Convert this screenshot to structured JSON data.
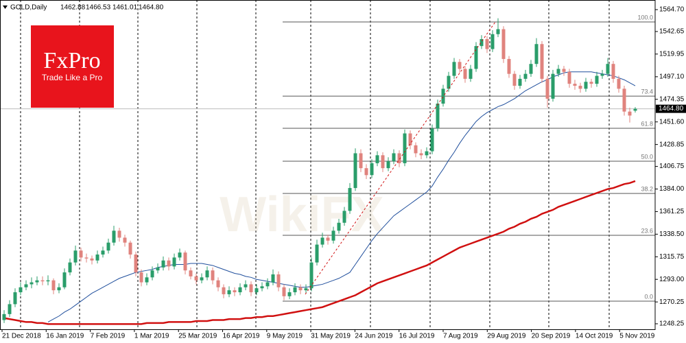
{
  "header": {
    "symbol": "GOLD,Daily",
    "ohlc": [
      "1462.88",
      "1466.53",
      "1461.01",
      "1464.80"
    ]
  },
  "logo": {
    "title": "FxPro",
    "tagline": "Trade Like a Pro"
  },
  "watermark": "WikiFX",
  "chart_data": {
    "type": "candlestick",
    "up_color": "#2a9d6a",
    "down_color": "#e0837e",
    "candles": [
      [
        1252,
        1262,
        1249,
        1258
      ],
      [
        1258,
        1272,
        1255,
        1268
      ],
      [
        1268,
        1284,
        1265,
        1280
      ],
      [
        1280,
        1290,
        1277,
        1285
      ],
      [
        1285,
        1292,
        1282,
        1288
      ],
      [
        1288,
        1295,
        1284,
        1290
      ],
      [
        1290,
        1296,
        1287,
        1292
      ],
      [
        1292,
        1296,
        1287,
        1291
      ],
      [
        1291,
        1297,
        1287,
        1292
      ],
      [
        1292,
        1294,
        1278,
        1282
      ],
      [
        1282,
        1289,
        1279,
        1285
      ],
      [
        1285,
        1304,
        1283,
        1300
      ],
      [
        1300,
        1314,
        1297,
        1310
      ],
      [
        1310,
        1327,
        1307,
        1322
      ],
      [
        1322,
        1325,
        1311,
        1315
      ],
      [
        1315,
        1319,
        1310,
        1314
      ],
      [
        1314,
        1317,
        1308,
        1312
      ],
      [
        1312,
        1322,
        1309,
        1318
      ],
      [
        1318,
        1326,
        1315,
        1322
      ],
      [
        1322,
        1334,
        1319,
        1330
      ],
      [
        1330,
        1347,
        1327,
        1342
      ],
      [
        1342,
        1345,
        1331,
        1335
      ],
      [
        1335,
        1338,
        1326,
        1330
      ],
      [
        1330,
        1332,
        1314,
        1318
      ],
      [
        1318,
        1321,
        1296,
        1300
      ],
      [
        1300,
        1303,
        1286,
        1290
      ],
      [
        1290,
        1299,
        1287,
        1295
      ],
      [
        1295,
        1306,
        1292,
        1302
      ],
      [
        1302,
        1309,
        1299,
        1305
      ],
      [
        1305,
        1316,
        1302,
        1312
      ],
      [
        1312,
        1315,
        1302,
        1306
      ],
      [
        1306,
        1319,
        1303,
        1315
      ],
      [
        1315,
        1324,
        1312,
        1320
      ],
      [
        1320,
        1322,
        1298,
        1302
      ],
      [
        1302,
        1305,
        1293,
        1296
      ],
      [
        1296,
        1299,
        1288,
        1292
      ],
      [
        1292,
        1299,
        1289,
        1295
      ],
      [
        1295,
        1306,
        1292,
        1302
      ],
      [
        1302,
        1305,
        1288,
        1292
      ],
      [
        1292,
        1295,
        1281,
        1285
      ],
      [
        1285,
        1288,
        1274,
        1278
      ],
      [
        1278,
        1286,
        1275,
        1282
      ],
      [
        1282,
        1285,
        1276,
        1280
      ],
      [
        1280,
        1289,
        1277,
        1285
      ],
      [
        1285,
        1292,
        1282,
        1288
      ],
      [
        1288,
        1291,
        1276,
        1280
      ],
      [
        1280,
        1288,
        1277,
        1284
      ],
      [
        1284,
        1290,
        1281,
        1286
      ],
      [
        1286,
        1294,
        1283,
        1290
      ],
      [
        1290,
        1303,
        1287,
        1298
      ],
      [
        1298,
        1301,
        1281,
        1285
      ],
      [
        1285,
        1288,
        1272,
        1276
      ],
      [
        1276,
        1284,
        1273,
        1280
      ],
      [
        1280,
        1289,
        1277,
        1285
      ],
      [
        1285,
        1288,
        1278,
        1282
      ],
      [
        1282,
        1288,
        1279,
        1284
      ],
      [
        1284,
        1315,
        1281,
        1310
      ],
      [
        1310,
        1333,
        1307,
        1328
      ],
      [
        1328,
        1340,
        1325,
        1335
      ],
      [
        1335,
        1338,
        1328,
        1332
      ],
      [
        1332,
        1346,
        1329,
        1342
      ],
      [
        1342,
        1354,
        1339,
        1350
      ],
      [
        1350,
        1366,
        1347,
        1362
      ],
      [
        1362,
        1390,
        1359,
        1385
      ],
      [
        1385,
        1425,
        1382,
        1420
      ],
      [
        1420,
        1424,
        1401,
        1405
      ],
      [
        1405,
        1409,
        1394,
        1398
      ],
      [
        1398,
        1414,
        1395,
        1410
      ],
      [
        1410,
        1422,
        1407,
        1418
      ],
      [
        1418,
        1421,
        1401,
        1405
      ],
      [
        1405,
        1416,
        1402,
        1412
      ],
      [
        1412,
        1424,
        1409,
        1420
      ],
      [
        1420,
        1423,
        1406,
        1410
      ],
      [
        1410,
        1444,
        1407,
        1440
      ],
      [
        1440,
        1443,
        1424,
        1428
      ],
      [
        1428,
        1431,
        1416,
        1420
      ],
      [
        1420,
        1424,
        1414,
        1418
      ],
      [
        1418,
        1426,
        1415,
        1422
      ],
      [
        1422,
        1449,
        1419,
        1445
      ],
      [
        1445,
        1474,
        1442,
        1470
      ],
      [
        1470,
        1489,
        1467,
        1485
      ],
      [
        1485,
        1502,
        1482,
        1498
      ],
      [
        1498,
        1516,
        1495,
        1512
      ],
      [
        1512,
        1515,
        1501,
        1505
      ],
      [
        1505,
        1508,
        1491,
        1495
      ],
      [
        1495,
        1509,
        1492,
        1505
      ],
      [
        1505,
        1532,
        1502,
        1528
      ],
      [
        1528,
        1539,
        1525,
        1535
      ],
      [
        1535,
        1538,
        1521,
        1525
      ],
      [
        1525,
        1544,
        1522,
        1540
      ],
      [
        1540,
        1556,
        1537,
        1545
      ],
      [
        1545,
        1548,
        1511,
        1515
      ],
      [
        1515,
        1518,
        1496,
        1500
      ],
      [
        1500,
        1503,
        1484,
        1488
      ],
      [
        1488,
        1499,
        1485,
        1495
      ],
      [
        1495,
        1504,
        1492,
        1500
      ],
      [
        1500,
        1514,
        1497,
        1510
      ],
      [
        1510,
        1536,
        1507,
        1530
      ],
      [
        1530,
        1533,
        1491,
        1495
      ],
      [
        1495,
        1498,
        1466,
        1475
      ],
      [
        1475,
        1504,
        1472,
        1500
      ],
      [
        1500,
        1509,
        1497,
        1505
      ],
      [
        1505,
        1508,
        1498,
        1502
      ],
      [
        1502,
        1505,
        1486,
        1490
      ],
      [
        1490,
        1494,
        1484,
        1488
      ],
      [
        1488,
        1491,
        1481,
        1485
      ],
      [
        1485,
        1496,
        1482,
        1492
      ],
      [
        1492,
        1495,
        1486,
        1490
      ],
      [
        1490,
        1502,
        1487,
        1498
      ],
      [
        1498,
        1504,
        1495,
        1500
      ],
      [
        1500,
        1516,
        1497,
        1510
      ],
      [
        1510,
        1513,
        1491,
        1495
      ],
      [
        1495,
        1498,
        1481,
        1485
      ],
      [
        1485,
        1488,
        1458,
        1462
      ],
      [
        1462,
        1466,
        1451,
        1458
      ],
      [
        1462.88,
        1466.53,
        1461.01,
        1464.8
      ]
    ],
    "moving_averages": [
      {
        "color": "#1f4e9c",
        "values": [
          null,
          null,
          null,
          null,
          null,
          null,
          null,
          null,
          1250,
          1253,
          1256,
          1260,
          1263,
          1267,
          1271,
          1275,
          1279,
          1282,
          1285,
          1288,
          1291,
          1294,
          1296,
          1298,
          1300,
          1301,
          1302,
          1303,
          1305,
          1306,
          1307,
          1308,
          1308,
          1308,
          1309,
          1309,
          1309,
          1308,
          1307,
          1305,
          1303,
          1301,
          1299,
          1298,
          1296,
          1295,
          1293,
          1292,
          1291,
          1290,
          1289,
          1288,
          1287,
          1286,
          1285,
          1285,
          1286,
          1287,
          1288,
          1290,
          1292,
          1294,
          1297,
          1300,
          1308,
          1316,
          1324,
          1332,
          1339,
          1345,
          1351,
          1357,
          1361,
          1365,
          1369,
          1373,
          1377,
          1381,
          1387,
          1396,
          1404,
          1413,
          1421,
          1430,
          1438,
          1445,
          1452,
          1457,
          1461,
          1464,
          1467,
          1469,
          1472,
          1475,
          1479,
          1483,
          1486,
          1489,
          1492,
          1494,
          1497,
          1499,
          1501,
          1502,
          1502,
          1502,
          1502,
          1502,
          1501,
          1500,
          1499,
          1498,
          1496,
          1494,
          1491,
          1488
        ]
      },
      {
        "color": "#d01010",
        "values": [
          1254,
          1253,
          1252,
          1251,
          1250,
          1250,
          1249,
          1249,
          1248,
          1248,
          1248,
          1248,
          1248,
          1248,
          1248,
          1248,
          1248,
          1248,
          1248,
          1248,
          1248,
          1248,
          1248,
          1248,
          1248,
          1248,
          1249,
          1249,
          1249,
          1249,
          1250,
          1250,
          1250,
          1250,
          1250,
          1251,
          1251,
          1251,
          1252,
          1252,
          1252,
          1253,
          1253,
          1253,
          1254,
          1254,
          1255,
          1255,
          1256,
          1256,
          1257,
          1258,
          1259,
          1260,
          1261,
          1262,
          1263,
          1264,
          1265,
          1267,
          1269,
          1271,
          1273,
          1275,
          1277,
          1280,
          1283,
          1286,
          1289,
          1291,
          1293,
          1295,
          1297,
          1299,
          1301,
          1303,
          1305,
          1307,
          1310,
          1313,
          1316,
          1319,
          1322,
          1325,
          1327,
          1329,
          1331,
          1333,
          1335,
          1337,
          1339,
          1341,
          1344,
          1346,
          1349,
          1351,
          1354,
          1356,
          1359,
          1361,
          1363,
          1366,
          1368,
          1370,
          1372,
          1374,
          1376,
          1378,
          1380,
          1382,
          1384,
          1385,
          1387,
          1389,
          1390,
          1392
        ]
      }
    ],
    "ylim": [
      1242.7,
      1574.4
    ],
    "yticks": [
      {
        "value": 1564.7,
        "label": "1564.70"
      },
      1542.65,
      1519.95,
      {
        "value": 1497.1,
        "label": "1497.10"
      },
      1474.35,
      {
        "value": 1451.6,
        "label": "1451.60"
      },
      1428.85,
      1406.75,
      {
        "value": 1384,
        "label": "1384.00"
      },
      1361.25,
      {
        "value": 1338.5,
        "label": "1338.50"
      },
      1315.75,
      {
        "value": 1293,
        "label": "1293.00"
      },
      1270.25,
      1248.25
    ],
    "fib_levels": [
      {
        "label": "100.0",
        "value": 1552.3
      },
      {
        "label": "73.4",
        "value": 1477.6
      },
      {
        "label": "61.8",
        "value": 1445.2
      },
      {
        "label": "50.0",
        "value": 1412.0
      },
      {
        "label": "38.2",
        "value": 1379.5
      },
      {
        "label": "23.6",
        "value": 1337.4
      },
      {
        "label": "0.0",
        "value": 1271.0
      }
    ],
    "current_price": {
      "value": 1464.8,
      "label": "1464.80"
    },
    "dates": [
      "21 Dec 2018",
      "16 Jan 2019",
      "7 Feb 2019",
      "1 Mar 2019",
      "25 Mar 2019",
      "16 Apr 2019",
      "9 May 2019",
      "31 May 2019",
      "24 Jun 2019",
      "16 Jul 2019",
      "7 Aug 2019",
      "29 Aug 2019",
      "20 Sep 2019",
      "14 Oct 2019",
      "5 Nov 2019"
    ]
  }
}
